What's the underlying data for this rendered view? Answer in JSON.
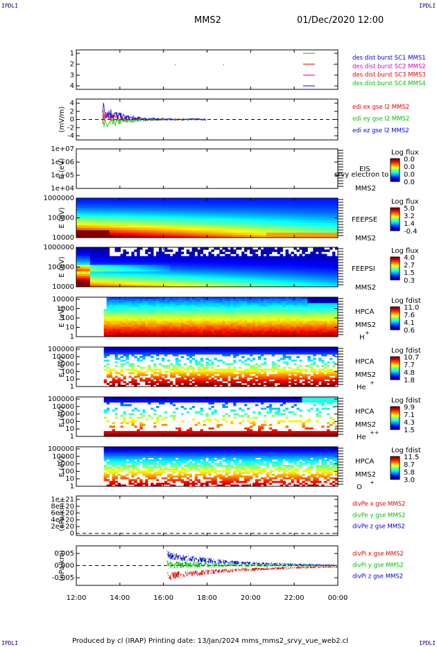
{
  "corners": {
    "tl": "IPDLI",
    "tr": "IPDLI",
    "bl": "IPDLI",
    "br": "IPDLI"
  },
  "header": {
    "spacecraft": "MMS2",
    "datetime": "01/Dec/2020 12:00"
  },
  "footer": "Produced by cl (IRAP)   Printing date: 13/Jan/2024   mms_mms2_srvy_vue_web2.cl",
  "colors": {
    "red": "#e00000",
    "green": "#00c000",
    "magenta": "#d000d0",
    "blue": "#0000e0"
  },
  "chart_data": [
    {
      "type": "scatter",
      "name": "burst",
      "yticks": [
        "1",
        "2",
        "3",
        "4"
      ],
      "ylim": [
        0.5,
        4.5
      ],
      "ylabel": "",
      "legend": [
        {
          "text": "des dist burst SC1 MMS1",
          "color": "#0000e0"
        },
        {
          "text": "des dist burst SC2 MMS2",
          "color": "#d000d0"
        },
        {
          "text": "des dist burst SC3 MMS3",
          "color": "#e00000"
        },
        {
          "text": "des dist burst SC4 MMS4",
          "color": "#00c000"
        }
      ]
    },
    {
      "type": "line",
      "name": "edi",
      "ylabel": "(mV/m)",
      "yticks": [
        "4",
        "2",
        "0",
        "-2",
        "-4"
      ],
      "ylim": [
        -5,
        5
      ],
      "legend": [
        {
          "text": "edi ex gse l2 MMS2",
          "color": "#e00000"
        },
        {
          "text": "edi ey gse l2 MMS2",
          "color": "#00c000"
        },
        {
          "text": "edi ez gse l2 MMS2",
          "color": "#0000e0"
        }
      ]
    },
    {
      "type": "heatmap",
      "name": "eis",
      "ylabel": "E (eV)",
      "yticks": [
        "1e+07",
        "1e+06",
        "1e+05",
        "1e+04"
      ],
      "labels": [
        "EIS",
        "MMS2"
      ],
      "overlay": "srvy electron to",
      "cbar_title": "Log flux",
      "cbar_ticks": [
        "0.0",
        "0.0",
        "0.0",
        "0.0"
      ]
    },
    {
      "type": "heatmap",
      "name": "feepse",
      "ylabel": "E (eV)",
      "yticks": [
        "1000000",
        "100000",
        "10000"
      ],
      "labels": [
        "FEEPSE",
        "MMS2"
      ],
      "cbar_title": "Log flux",
      "cbar_ticks": [
        "5.0",
        "3.2",
        "1.4",
        "-0.4"
      ]
    },
    {
      "type": "heatmap",
      "name": "feepsi",
      "ylabel": "E (eV)",
      "yticks": [
        "1000000",
        "100000",
        "10000"
      ],
      "labels": [
        "FEEPSI",
        "MMS2"
      ],
      "cbar_title": "Log flux",
      "cbar_ticks": [
        "4.0",
        "2.7",
        "1.5",
        "0.3"
      ]
    },
    {
      "type": "heatmap",
      "name": "hpca-h",
      "ylabel": "E (eV)",
      "yticks": [
        "10000",
        "1000",
        "100",
        "10",
        "1"
      ],
      "labels": [
        "HPCA",
        "MMS2",
        "H",
        "+"
      ],
      "cbar_title": "Log fdist",
      "cbar_ticks": [
        "11.0",
        "7.6",
        "4.1",
        "0.6"
      ]
    },
    {
      "type": "heatmap",
      "name": "hpca-he",
      "ylabel": "E (eV)",
      "yticks": [
        "100000",
        "10000",
        "1000",
        "100",
        "10",
        "1"
      ],
      "labels": [
        "HPCA",
        "MMS2",
        "He",
        "+"
      ],
      "cbar_title": "Log fdist",
      "cbar_ticks": [
        "10.7",
        "7.7",
        "4.8",
        "1.8"
      ]
    },
    {
      "type": "heatmap",
      "name": "hpca-hepp",
      "ylabel": "E (eV)",
      "yticks": [
        "100000",
        "10000",
        "1000",
        "100",
        "10",
        "1"
      ],
      "labels": [
        "HPCA",
        "MMS2",
        "He",
        "++"
      ],
      "cbar_title": "Log fdist",
      "cbar_ticks": [
        "9.9",
        "7.1",
        "4.3",
        "1.5"
      ]
    },
    {
      "type": "heatmap",
      "name": "hpca-o",
      "ylabel": "E (eV)",
      "yticks": [
        "100000",
        "10000",
        "1000",
        "100",
        "10",
        "1"
      ],
      "labels": [
        "HPCA",
        "MMS2",
        "O",
        "+"
      ],
      "cbar_title": "Log fdist",
      "cbar_ticks": [
        "11.5",
        "8.7",
        "5.8",
        "3.0"
      ]
    },
    {
      "type": "line",
      "name": "divpe",
      "ylabel": "(nPa/km)",
      "yticks": [
        "1e+21",
        "8e+20",
        "6e+20",
        "4e+20",
        "2e+20",
        "0"
      ],
      "ylim": [
        -1e+20,
        1.1e+21
      ],
      "legend": [
        {
          "text": "divPe x gse MMS2",
          "color": "#e00000"
        },
        {
          "text": "divPe y gse MMS2",
          "color": "#00c000"
        },
        {
          "text": "divPe z gse MMS2",
          "color": "#0000e0"
        }
      ]
    },
    {
      "type": "line",
      "name": "divpi",
      "ylabel": "(nPa/km)",
      "yticks": [
        "0.005",
        "0.000",
        "-0.005"
      ],
      "ylim": [
        -0.0075,
        0.0075
      ],
      "legend": [
        {
          "text": "divPi x gse MMS2",
          "color": "#e00000"
        },
        {
          "text": "divPi y gse MMS2",
          "color": "#00c000"
        },
        {
          "text": "divPi z gse MMS2",
          "color": "#0000e0"
        }
      ]
    }
  ],
  "xaxis": {
    "ticks": [
      "12:00",
      "14:00",
      "16:00",
      "18:00",
      "20:00",
      "22:00",
      "00:00"
    ]
  }
}
